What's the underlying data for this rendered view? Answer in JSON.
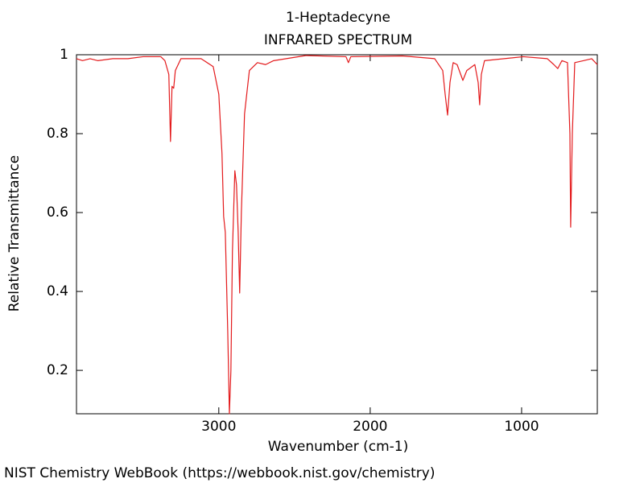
{
  "chart_data": {
    "type": "line",
    "title": "1-Heptadecyne",
    "subtitle": "INFRARED SPECTRUM",
    "xlabel": "Wavenumber (cm-1)",
    "ylabel": "Relative Transmittance",
    "source": "NIST Chemistry WebBook (https://webbook.nist.gov/chemistry)",
    "color": "#e31a1c",
    "xlim": [
      3940,
      500
    ],
    "ylim": [
      0.09,
      1
    ],
    "xticks": [
      3000,
      2000,
      1000
    ],
    "yticks": [
      0.2,
      0.4,
      0.6,
      0.8,
      1
    ],
    "x": [
      3940,
      3900,
      3850,
      3800,
      3700,
      3600,
      3500,
      3383,
      3356,
      3330,
      3319,
      3309,
      3298,
      3287,
      3250,
      3117,
      3037,
      3000,
      2979,
      2968,
      2957,
      2941,
      2930,
      2920,
      2910,
      2894,
      2883,
      2872,
      2862,
      2851,
      2830,
      2798,
      2745,
      2691,
      2638,
      2426,
      2160,
      2144,
      2128,
      1787,
      1574,
      1521,
      1505,
      1489,
      1473,
      1452,
      1426,
      1388,
      1362,
      1309,
      1287,
      1277,
      1266,
      1245,
      989,
      830,
      787,
      761,
      734,
      697,
      681,
      676,
      665,
      649,
      590,
      537,
      500
    ],
    "values": [
      0.99,
      0.985,
      0.99,
      0.985,
      0.99,
      0.99,
      0.995,
      0.995,
      0.985,
      0.95,
      0.78,
      0.92,
      0.915,
      0.96,
      0.99,
      0.99,
      0.97,
      0.9,
      0.75,
      0.59,
      0.55,
      0.3,
      0.09,
      0.2,
      0.5,
      0.706,
      0.67,
      0.55,
      0.396,
      0.6,
      0.85,
      0.96,
      0.98,
      0.975,
      0.985,
      0.998,
      0.995,
      0.98,
      0.995,
      0.997,
      0.99,
      0.96,
      0.9,
      0.847,
      0.93,
      0.98,
      0.975,
      0.935,
      0.96,
      0.975,
      0.93,
      0.873,
      0.95,
      0.985,
      0.995,
      0.99,
      0.975,
      0.965,
      0.985,
      0.98,
      0.8,
      0.563,
      0.8,
      0.98,
      0.985,
      0.99,
      0.975
    ]
  }
}
